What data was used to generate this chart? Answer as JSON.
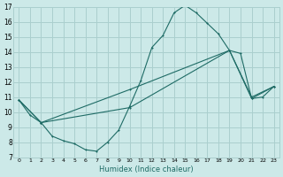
{
  "xlabel": "Humidex (Indice chaleur)",
  "bg_color": "#cce9e8",
  "grid_color": "#aacfce",
  "line_color": "#1e6b65",
  "xlim": [
    -0.5,
    23.5
  ],
  "ylim": [
    7,
    17
  ],
  "xticks": [
    0,
    1,
    2,
    3,
    4,
    5,
    6,
    7,
    8,
    9,
    10,
    11,
    12,
    13,
    14,
    15,
    16,
    17,
    18,
    19,
    20,
    21,
    22,
    23
  ],
  "yticks": [
    7,
    8,
    9,
    10,
    11,
    12,
    13,
    14,
    15,
    16,
    17
  ],
  "line1_x": [
    0,
    1,
    2,
    3,
    4,
    5,
    6,
    7,
    8,
    9,
    10,
    11,
    12,
    13,
    14,
    15,
    16,
    17,
    18,
    19,
    20,
    21,
    22,
    23
  ],
  "line1_y": [
    10.8,
    9.8,
    9.3,
    8.4,
    8.1,
    7.9,
    7.5,
    7.4,
    8.0,
    8.8,
    10.4,
    12.1,
    14.3,
    15.1,
    16.6,
    17.1,
    16.6,
    15.9,
    15.2,
    14.1,
    13.9,
    10.9,
    11.0,
    11.7
  ],
  "line2_x": [
    0,
    2,
    10,
    19,
    21,
    23
  ],
  "line2_y": [
    10.8,
    9.3,
    10.3,
    14.1,
    10.9,
    11.7
  ],
  "line3_x": [
    0,
    2,
    10,
    19,
    21,
    23
  ],
  "line3_y": [
    10.8,
    9.3,
    11.5,
    14.1,
    11.0,
    11.7
  ]
}
